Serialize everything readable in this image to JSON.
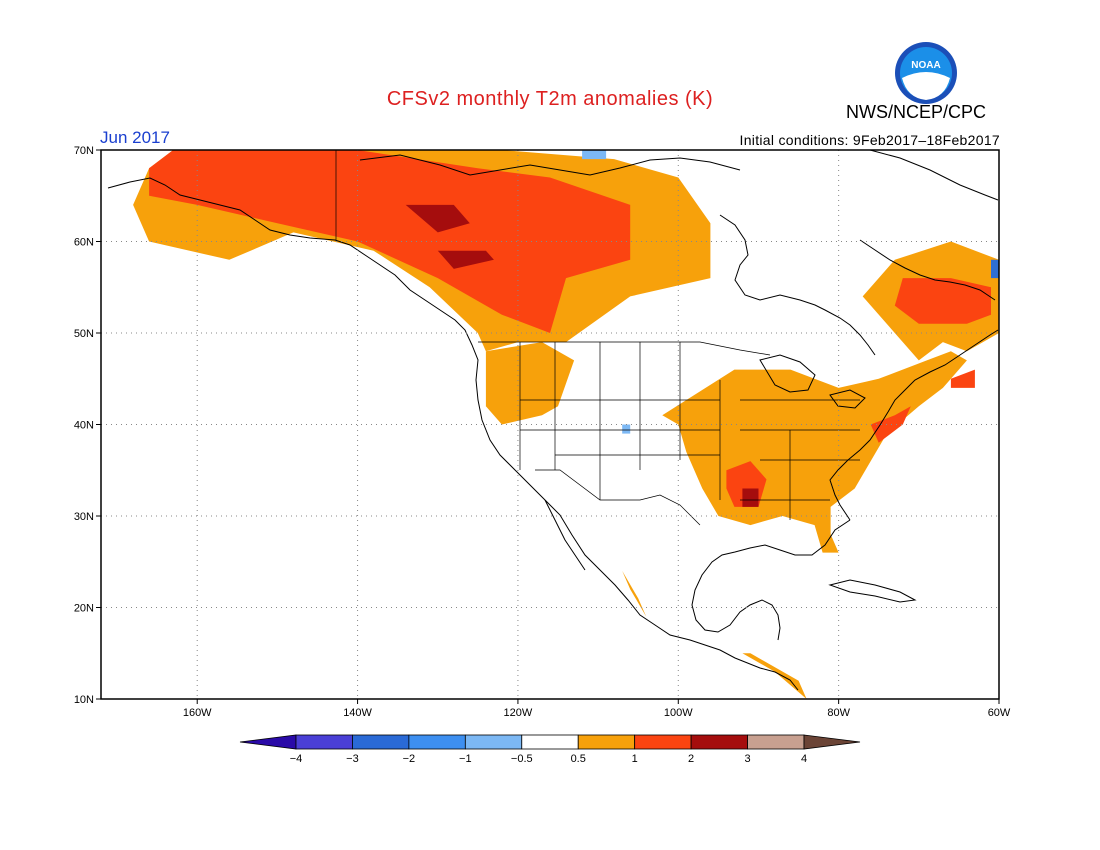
{
  "header": {
    "title": "CFSv2 monthly T2m anomalies (K)",
    "title_color": "#dd2020",
    "organization": "NWS/NCEP/CPC",
    "logo_text": "NOAA",
    "month": "Jun 2017",
    "month_color": "#1a3fcf",
    "initial_conditions": "Initial conditions: 9Feb2017–18Feb2017"
  },
  "map": {
    "lon_range": [
      -172,
      -60
    ],
    "lat_range": [
      10,
      70
    ],
    "lon_ticks": [
      {
        "value": -160,
        "label": "160W"
      },
      {
        "value": -140,
        "label": "140W"
      },
      {
        "value": -120,
        "label": "120W"
      },
      {
        "value": -100,
        "label": "100W"
      },
      {
        "value": -80,
        "label": "80W"
      },
      {
        "value": -60,
        "label": "60W"
      }
    ],
    "lat_ticks": [
      {
        "value": 70,
        "label": "70N"
      },
      {
        "value": 60,
        "label": "60N"
      },
      {
        "value": 50,
        "label": "50N"
      },
      {
        "value": 40,
        "label": "40N"
      },
      {
        "value": 30,
        "label": "30N"
      },
      {
        "value": 20,
        "label": "20N"
      },
      {
        "value": 10,
        "label": "10N"
      }
    ],
    "grid": "dotted",
    "anomaly_regions": [
      {
        "level": "0.5–1",
        "color": "#f7a10b",
        "lonlat": [
          [
            -166,
            68
          ],
          [
            -163,
            70
          ],
          [
            -142,
            70
          ],
          [
            -122,
            70
          ],
          [
            -108,
            69
          ],
          [
            -100,
            67
          ],
          [
            -96,
            62
          ],
          [
            -96,
            56
          ],
          [
            -106,
            54
          ],
          [
            -114,
            49
          ],
          [
            -120,
            49
          ],
          [
            -124,
            48
          ],
          [
            -125,
            50
          ],
          [
            -131,
            55
          ],
          [
            -138,
            59
          ],
          [
            -148,
            61
          ],
          [
            -156,
            58
          ],
          [
            -166,
            60
          ],
          [
            -168,
            64
          ]
        ]
      },
      {
        "level": "0.5–1",
        "color": "#f7a10b",
        "lonlat": [
          [
            -124,
            48
          ],
          [
            -117,
            49
          ],
          [
            -113,
            47
          ],
          [
            -115,
            42
          ],
          [
            -117,
            41
          ],
          [
            -122,
            40
          ],
          [
            -124,
            42
          ]
        ]
      },
      {
        "level": "0.5–1",
        "color": "#f7a10b",
        "lonlat": [
          [
            -102,
            41
          ],
          [
            -93,
            46
          ],
          [
            -86,
            46
          ],
          [
            -80,
            44
          ],
          [
            -75,
            45
          ],
          [
            -69,
            47
          ],
          [
            -66,
            48
          ],
          [
            -64,
            47
          ],
          [
            -67,
            44
          ],
          [
            -70,
            42
          ],
          [
            -74,
            39
          ],
          [
            -76,
            36
          ],
          [
            -78,
            33
          ],
          [
            -81,
            31
          ],
          [
            -81,
            28
          ],
          [
            -80,
            26
          ],
          [
            -82,
            26
          ],
          [
            -83,
            29
          ],
          [
            -87,
            30
          ],
          [
            -91,
            29
          ],
          [
            -95,
            30
          ],
          [
            -97,
            33
          ],
          [
            -99,
            37
          ],
          [
            -100,
            40
          ]
        ]
      },
      {
        "level": "0.5–1",
        "color": "#f7a10b",
        "lonlat": [
          [
            -73,
            58
          ],
          [
            -66,
            60
          ],
          [
            -60,
            58
          ],
          [
            -60,
            50
          ],
          [
            -64,
            48
          ],
          [
            -67,
            49
          ],
          [
            -70,
            47
          ],
          [
            -73,
            50
          ],
          [
            -77,
            54
          ]
        ]
      },
      {
        "level": "0.5–1",
        "color": "#f7a10b",
        "lonlat": [
          [
            -107,
            24
          ],
          [
            -105,
            21
          ],
          [
            -104,
            19
          ],
          [
            -106,
            22
          ]
        ]
      },
      {
        "level": "0.5–1",
        "color": "#f7a10b",
        "lonlat": [
          [
            -91,
            15
          ],
          [
            -85,
            12
          ],
          [
            -84,
            10
          ],
          [
            -88,
            13
          ],
          [
            -92,
            15
          ]
        ]
      },
      {
        "level": "1–2",
        "color": "#fb4411",
        "lonlat": [
          [
            -166,
            68
          ],
          [
            -163,
            70
          ],
          [
            -140,
            70
          ],
          [
            -125,
            68
          ],
          [
            -116,
            67
          ],
          [
            -106,
            64
          ],
          [
            -106,
            58
          ],
          [
            -114,
            56
          ],
          [
            -116,
            50
          ],
          [
            -122,
            52
          ],
          [
            -130,
            56
          ],
          [
            -140,
            60
          ],
          [
            -150,
            62
          ],
          [
            -160,
            64
          ],
          [
            -166,
            65
          ]
        ]
      },
      {
        "level": "1–2",
        "color": "#fb4411",
        "lonlat": [
          [
            -72,
            56
          ],
          [
            -66,
            56
          ],
          [
            -61,
            55
          ],
          [
            -61,
            52
          ],
          [
            -64,
            51
          ],
          [
            -70,
            51
          ],
          [
            -73,
            53
          ]
        ]
      },
      {
        "level": "1–2",
        "color": "#fb4411",
        "lonlat": [
          [
            -94,
            35
          ],
          [
            -91,
            36
          ],
          [
            -89,
            34
          ],
          [
            -90,
            31
          ],
          [
            -93,
            31
          ],
          [
            -94,
            33
          ]
        ]
      },
      {
        "level": "1–2",
        "color": "#fb4411",
        "lonlat": [
          [
            -76,
            40
          ],
          [
            -73,
            41
          ],
          [
            -71,
            42
          ],
          [
            -72,
            40
          ],
          [
            -75,
            38
          ]
        ]
      },
      {
        "level": "1–2",
        "color": "#fb4411",
        "lonlat": [
          [
            -66,
            45
          ],
          [
            -63,
            46
          ],
          [
            -63,
            44
          ],
          [
            -66,
            44
          ]
        ]
      },
      {
        "level": "2–3",
        "color": "#a50d0d",
        "lonlat": [
          [
            -134,
            64
          ],
          [
            -128,
            64
          ],
          [
            -126,
            62
          ],
          [
            -130,
            61
          ]
        ]
      },
      {
        "level": "2–3",
        "color": "#a50d0d",
        "lonlat": [
          [
            -130,
            59
          ],
          [
            -124,
            59
          ],
          [
            -123,
            58
          ],
          [
            -128,
            57
          ]
        ]
      },
      {
        "level": "2–3",
        "color": "#a50d0d",
        "lonlat": [
          [
            -92,
            33
          ],
          [
            -90,
            33
          ],
          [
            -90,
            31
          ],
          [
            -92,
            31
          ]
        ]
      },
      {
        "level": "-0.5–-1",
        "color": "#7cb8f4",
        "lonlat": [
          [
            -112,
            70
          ],
          [
            -109,
            70
          ],
          [
            -109,
            69
          ],
          [
            -112,
            69
          ]
        ]
      },
      {
        "level": "-0.5–-1",
        "color": "#7cb8f4",
        "lonlat": [
          [
            -107,
            40
          ],
          [
            -106,
            40
          ],
          [
            -106,
            39
          ],
          [
            -107,
            39
          ]
        ]
      },
      {
        "level": "-1–-2",
        "color": "#2f6fd3",
        "lonlat": [
          [
            -61,
            58
          ],
          [
            -60,
            58
          ],
          [
            -60,
            56
          ],
          [
            -61,
            56
          ]
        ]
      }
    ]
  },
  "colorbar": {
    "levels": [
      {
        "color": "#2a0aa8",
        "label": ""
      },
      {
        "color": "#4a3fd6",
        "label": "−4"
      },
      {
        "color": "#2a6ad6",
        "label": "−3"
      },
      {
        "color": "#3d8ff0",
        "label": "−2"
      },
      {
        "color": "#7cb8f4",
        "label": "−1"
      },
      {
        "color": "#ffffff",
        "label": "−0.5"
      },
      {
        "color": "#f7a10b",
        "label": "0.5"
      },
      {
        "color": "#fb4411",
        "label": "1"
      },
      {
        "color": "#a50d0d",
        "label": "2"
      },
      {
        "color": "#c8a090",
        "label": "3"
      },
      {
        "color": "#6b4436",
        "label": "4"
      }
    ]
  }
}
